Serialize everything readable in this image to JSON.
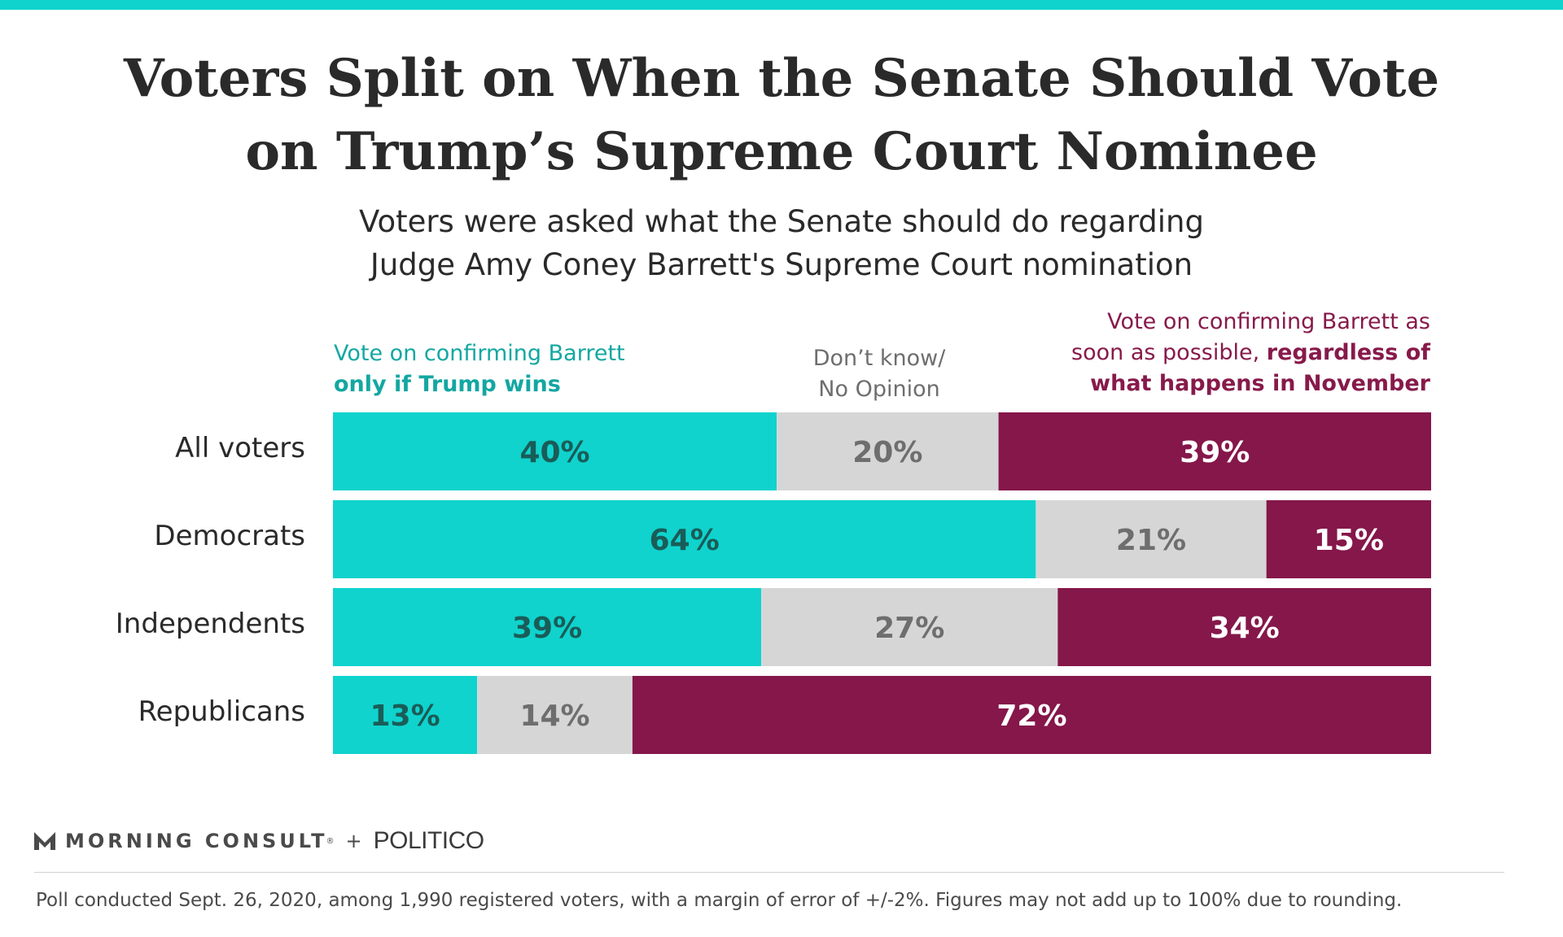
{
  "title": {
    "line1": "Voters Split on When the Senate Should Vote",
    "line2": "on Trump’s Supreme Court Nominee"
  },
  "subtitle": {
    "line1": "Voters were asked what the Senate should do regarding",
    "line2": "Judge Amy Coney Barrett's Supreme Court nomination"
  },
  "legend": {
    "left": {
      "line1": "Vote on confirming Barrett",
      "line2": "only if Trump wins"
    },
    "middle": {
      "line1": "Don’t know/",
      "line2": "No Opinion"
    },
    "right": {
      "line1": "Vote on confirming Barrett as",
      "line2_plain": "soon as possible, ",
      "line2_bold": "regardless of",
      "line3": "what happens in November"
    }
  },
  "colors": {
    "teal": "#10d3cd",
    "gray": "#d6d6d6",
    "maroon": "#85174a",
    "teal_text": "#1a5c58",
    "gray_text": "#6e6e6e",
    "maroon_text": "#ffffff"
  },
  "chart_data": {
    "type": "bar",
    "orientation": "horizontal",
    "stacked": true,
    "categories": [
      "All voters",
      "Democrats",
      "Independents",
      "Republicans"
    ],
    "series": [
      {
        "name": "Vote on confirming Barrett only if Trump wins",
        "values": [
          40,
          64,
          39,
          13
        ],
        "labels": [
          "40%",
          "64%",
          "39%",
          "13%"
        ]
      },
      {
        "name": "Don’t know/No Opinion",
        "values": [
          20,
          21,
          27,
          14
        ],
        "labels": [
          "20%",
          "21%",
          "27%",
          "14%"
        ]
      },
      {
        "name": "Vote on confirming Barrett as soon as possible, regardless of what happens in November",
        "values": [
          39,
          15,
          34,
          72
        ],
        "labels": [
          "39%",
          "15%",
          "34%",
          "72%"
        ]
      }
    ],
    "xlim": [
      0,
      100
    ],
    "grid": false,
    "legend": "top"
  },
  "brand": {
    "morning_consult": "MORNING CONSULT",
    "trademark": "®",
    "plus": "+",
    "politico": "POLITICO"
  },
  "footnote": "Poll conducted Sept. 26, 2020, among 1,990 registered voters, with a margin of error of +/-2%. Figures may not add up to 100% due to rounding."
}
